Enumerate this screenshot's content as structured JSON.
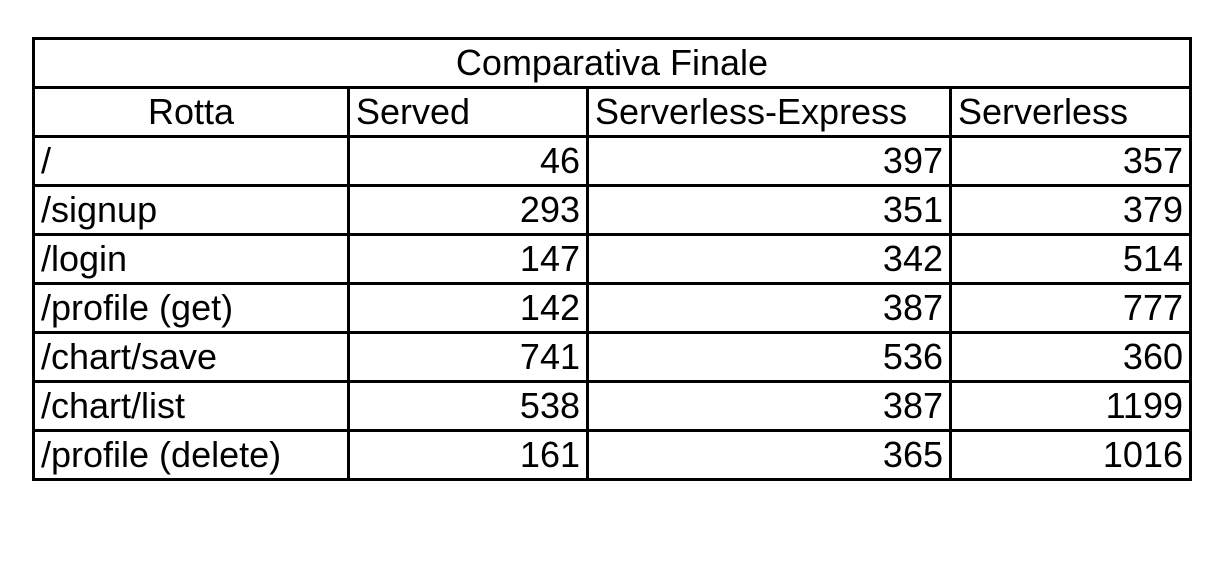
{
  "chart_data": {
    "type": "table",
    "title": "Comparativa Finale",
    "columns": [
      "Rotta",
      "Served",
      "Serverless-Express",
      "Serverless"
    ],
    "rows": [
      {
        "route": "/",
        "served": "46",
        "serverless_express": "397",
        "serverless": "357"
      },
      {
        "route": "/signup",
        "served": "293",
        "serverless_express": "351",
        "serverless": "379"
      },
      {
        "route": "/login",
        "served": "147",
        "serverless_express": "342",
        "serverless": "514"
      },
      {
        "route": "/profile (get)",
        "served": "142",
        "serverless_express": "387",
        "serverless": "777"
      },
      {
        "route": "/chart/save",
        "served": "741",
        "serverless_express": "536",
        "serverless": "360"
      },
      {
        "route": "/chart/list",
        "served": "538",
        "serverless_express": "387",
        "serverless": "1199"
      },
      {
        "route": "/profile (delete)",
        "served": "161",
        "serverless_express": "365",
        "serverless": "1016"
      }
    ]
  }
}
